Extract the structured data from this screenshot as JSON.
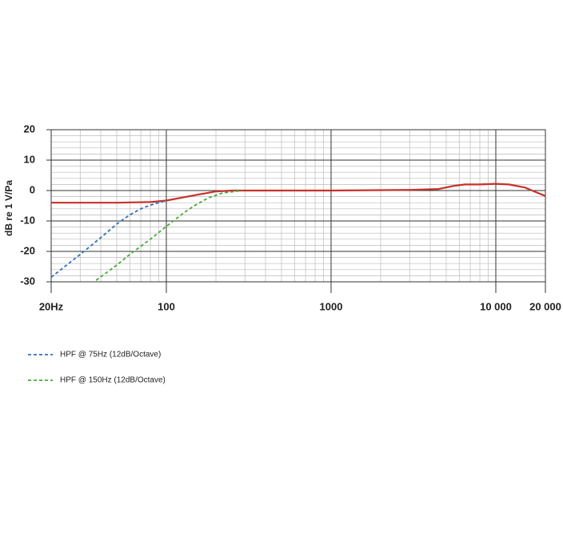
{
  "chart_data": {
    "type": "line",
    "ylabel": "dB re 1 V/Pa",
    "xscale": "log",
    "xlim": [
      20,
      20000
    ],
    "ylim": [
      -30,
      20
    ],
    "xticks": [
      {
        "value": 20,
        "label": "20Hz"
      },
      100,
      1000,
      {
        "value": 10000,
        "label": "10 000"
      },
      {
        "value": 20000,
        "label": "20 000"
      }
    ],
    "yticks": [
      -30,
      -20,
      -10,
      0,
      10,
      20
    ],
    "x_minor_ticks": [
      30,
      40,
      50,
      60,
      70,
      80,
      90,
      200,
      300,
      400,
      500,
      600,
      700,
      800,
      900,
      2000,
      3000,
      4000,
      5000,
      6000,
      7000,
      8000,
      9000
    ],
    "y_minor_ticks": [
      -28,
      -26,
      -24,
      -22,
      -18,
      -16,
      -14,
      -12,
      -8,
      -6,
      -4,
      -2,
      2,
      4,
      6,
      8,
      12,
      14,
      16,
      18
    ],
    "grid": true,
    "series": [
      {
        "color": "#c8312b",
        "dash": false,
        "x": [
          20,
          50,
          80,
          100,
          150,
          200,
          250,
          300,
          1000,
          3000,
          4500,
          5500,
          6500,
          8000,
          10000,
          12000,
          15000,
          18000,
          20000
        ],
        "values": [
          -4,
          -4,
          -3.8,
          -3.3,
          -1.5,
          -0.3,
          0,
          0,
          0,
          0.2,
          0.5,
          1.5,
          2,
          2,
          2.2,
          2,
          1,
          -0.8,
          -1.8
        ]
      },
      {
        "name": "HPF @ 75Hz (12dB/Octave)",
        "color": "#2f6fb5",
        "dash": true,
        "x": [
          20,
          30,
          40,
          50,
          60,
          70,
          80,
          100
        ],
        "values": [
          -28.5,
          -21,
          -15.5,
          -11,
          -8,
          -6,
          -4.8,
          -3.3
        ]
      },
      {
        "name": "HPF @ 150Hz (12dB/Octave)",
        "color": "#4aa83a",
        "dash": true,
        "x": [
          37.5,
          50,
          60,
          80,
          100,
          130,
          150,
          180,
          220,
          290
        ],
        "values": [
          -29.5,
          -24.5,
          -21,
          -16,
          -11.8,
          -7,
          -4.8,
          -2.4,
          -0.8,
          0
        ]
      }
    ]
  }
}
